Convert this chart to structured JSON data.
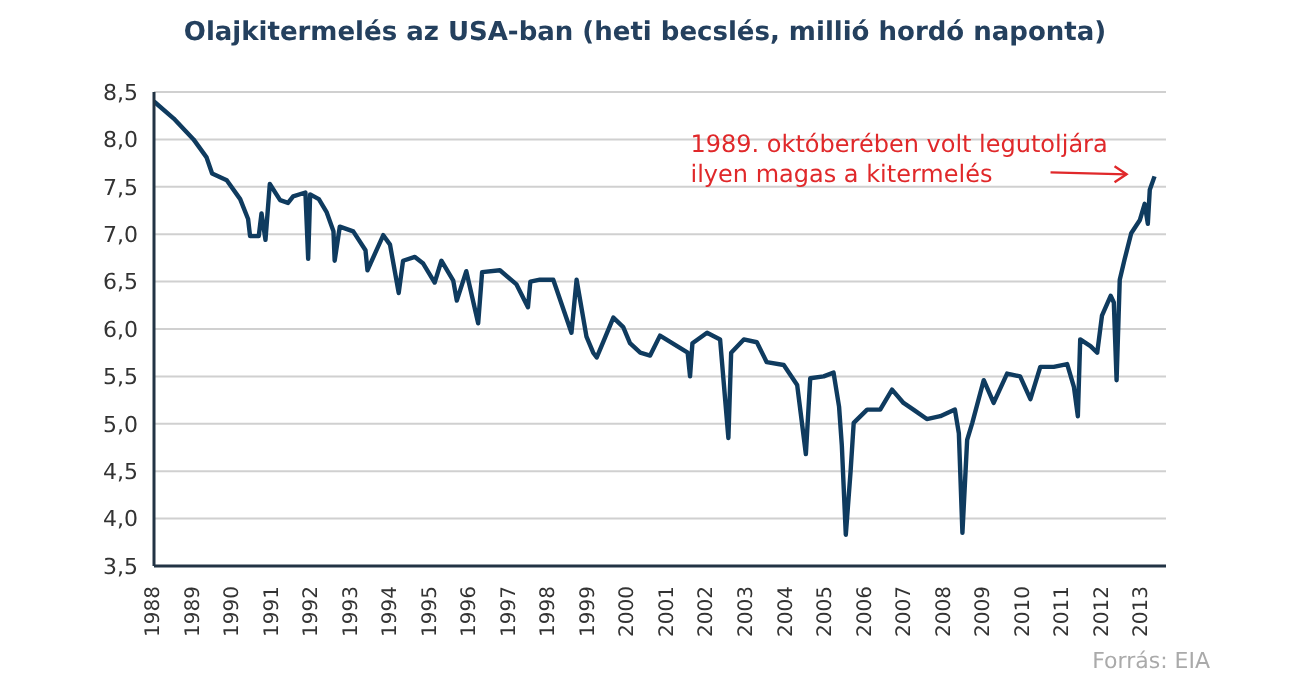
{
  "chart_data": {
    "type": "line",
    "title": "Olajkitermelés  az USA-ban (heti becslés, millió hordó naponta)",
    "x": [
      1988.0,
      1988.5,
      1989.0,
      1989.33,
      1989.47,
      1989.84,
      1990.18,
      1990.38,
      1990.43,
      1990.65,
      1990.72,
      1990.82,
      1990.93,
      1991.19,
      1991.39,
      1991.52,
      1991.83,
      1991.9,
      1991.95,
      1992.17,
      1992.37,
      1992.54,
      1992.57,
      1992.7,
      1993.04,
      1993.35,
      1993.4,
      1993.8,
      1993.97,
      1994.19,
      1994.3,
      1994.6,
      1994.81,
      1995.1,
      1995.27,
      1995.57,
      1995.66,
      1995.9,
      1996.2,
      1996.3,
      1996.75,
      1997.17,
      1997.46,
      1997.52,
      1997.76,
      1998.1,
      1998.56,
      1998.69,
      1998.94,
      1999.11,
      1999.2,
      1999.37,
      1999.62,
      1999.87,
      2000.04,
      2000.3,
      2000.55,
      2000.8,
      2001.5,
      2001.56,
      2001.62,
      2001.99,
      2002.32,
      2002.53,
      2002.6,
      2002.92,
      2003.25,
      2003.5,
      2003.93,
      2004.27,
      2004.49,
      2004.6,
      2004.94,
      2005.19,
      2005.33,
      2005.4,
      2005.5,
      2005.62,
      2005.7,
      2006.04,
      2006.37,
      2006.67,
      2006.96,
      2007.21,
      2007.55,
      2007.89,
      2008.26,
      2008.36,
      2008.45,
      2008.57,
      2008.7,
      2008.99,
      2009.24,
      2009.58,
      2009.91,
      2010.17,
      2010.42,
      2010.76,
      2011.1,
      2011.27,
      2011.37,
      2011.43,
      2011.69,
      2011.86,
      2011.98,
      2012.2,
      2012.28,
      2012.35,
      2012.43,
      2012.55,
      2012.72,
      2012.94,
      2013.06,
      2013.14,
      2013.19,
      2013.31
    ],
    "series": [
      {
        "color": "#0f3b5f",
        "values": [
          8.4,
          8.22,
          8.0,
          7.81,
          7.64,
          7.57,
          7.37,
          7.16,
          6.98,
          6.98,
          7.22,
          6.94,
          7.53,
          7.36,
          7.33,
          7.4,
          7.44,
          6.74,
          7.42,
          7.37,
          7.23,
          7.03,
          6.72,
          7.08,
          7.03,
          6.83,
          6.62,
          6.99,
          6.89,
          6.38,
          6.72,
          6.76,
          6.69,
          6.49,
          6.72,
          6.51,
          6.3,
          6.61,
          6.06,
          6.6,
          6.62,
          6.47,
          6.23,
          6.5,
          6.52,
          6.52,
          5.96,
          6.52,
          5.92,
          5.75,
          5.7,
          5.87,
          6.12,
          6.02,
          5.85,
          5.75,
          5.72,
          5.93,
          5.75,
          5.5,
          5.85,
          5.96,
          5.89,
          4.85,
          5.75,
          5.89,
          5.86,
          5.65,
          5.62,
          5.41,
          4.68,
          5.48,
          5.5,
          5.54,
          5.18,
          4.77,
          3.83,
          4.49,
          5.01,
          5.15,
          5.15,
          5.36,
          5.22,
          5.15,
          5.05,
          5.08,
          5.15,
          4.9,
          3.85,
          4.83,
          5.01,
          5.46,
          5.22,
          5.53,
          5.5,
          5.26,
          5.6,
          5.6,
          5.63,
          5.39,
          5.08,
          5.89,
          5.82,
          5.75,
          6.14,
          6.35,
          6.28,
          5.46,
          6.52,
          6.73,
          7.01,
          7.15,
          7.32,
          7.11,
          7.47,
          7.61
        ]
      }
    ],
    "xlim": [
      1988,
      2013.6
    ],
    "xticks": [
      1988,
      1989,
      1990,
      1991,
      1992,
      1993,
      1994,
      1995,
      1996,
      1997,
      1998,
      1999,
      2000,
      2001,
      2002,
      2003,
      2004,
      2005,
      2006,
      2007,
      2008,
      2009,
      2010,
      2011,
      2012,
      2013
    ],
    "ylim": [
      3.5,
      8.5
    ],
    "yticks": [
      {
        "value": 3.5,
        "label": "3,5"
      },
      {
        "value": 4,
        "label": "4,0"
      },
      {
        "value": 4.5,
        "label": "4,5"
      },
      {
        "value": 5,
        "label": "5,0"
      },
      {
        "value": 5.5,
        "label": "5,5"
      },
      {
        "value": 6,
        "label": "6,0"
      },
      {
        "value": 6.5,
        "label": "6,5"
      },
      {
        "value": 7,
        "label": "7,0"
      },
      {
        "value": 7.5,
        "label": "7,5"
      },
      {
        "value": 8,
        "label": "8,0"
      },
      {
        "value": 8.5,
        "label": "8,5"
      }
    ],
    "grid": "y",
    "annotations": [
      {
        "text": "1989.  októberében volt legutoljára\nilyen magas a kitermelés",
        "x": 2013.31,
        "y": 7.61
      },
      "Forrás: EIA"
    ]
  }
}
